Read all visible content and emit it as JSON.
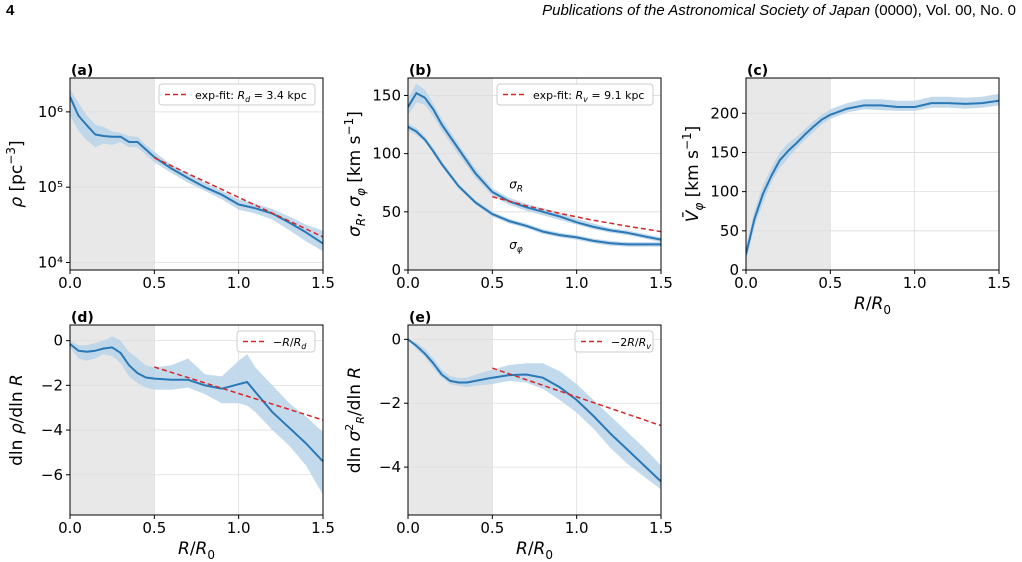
{
  "header": {
    "page_number": "4",
    "journal": "Publications of the Astronomical Society of Japan",
    "volume": " (0000), Vol. 00, No. 0"
  },
  "colors": {
    "line": "#2a78b5",
    "band": "#b9d4ea",
    "fit": "#d62728",
    "shade": "#e8e8e8"
  },
  "chart_data": [
    {
      "id": "a",
      "panel_label": "(a)",
      "type": "line",
      "ylabel": "ρ [pc⁻³]",
      "xlabel": "",
      "xlim": [
        0,
        1.5
      ],
      "ylim": [
        3.9,
        6.45
      ],
      "yscale": "log10",
      "yticks": [
        4,
        5,
        6
      ],
      "ytick_labels": [
        "10⁴",
        "10⁵",
        "10⁶"
      ],
      "xticks": [
        0,
        0.5,
        1,
        1.5
      ],
      "xtick_labels": [
        "0.0",
        "0.5",
        "1.0",
        "1.5"
      ],
      "shaded_region": [
        0,
        0.5
      ],
      "grid": true,
      "legend_position": "upper right",
      "series": [
        {
          "kind": "band",
          "x": [
            0,
            0.05,
            0.1,
            0.15,
            0.2,
            0.25,
            0.3,
            0.35,
            0.4,
            0.45,
            0.5,
            0.6,
            0.7,
            0.8,
            0.9,
            1.0,
            1.1,
            1.2,
            1.3,
            1.4,
            1.5
          ],
          "low": [
            5.95,
            5.75,
            5.62,
            5.53,
            5.58,
            5.56,
            5.6,
            5.53,
            5.53,
            5.43,
            5.33,
            5.19,
            5.06,
            4.95,
            4.84,
            4.7,
            4.65,
            4.57,
            4.43,
            4.28,
            4.15
          ],
          "high": [
            6.3,
            6.12,
            5.95,
            5.83,
            5.8,
            5.74,
            5.72,
            5.68,
            5.67,
            5.56,
            5.47,
            5.3,
            5.18,
            5.06,
            4.95,
            4.84,
            4.78,
            4.71,
            4.61,
            4.5,
            4.42
          ]
        },
        {
          "kind": "line",
          "x": [
            0,
            0.05,
            0.1,
            0.15,
            0.2,
            0.25,
            0.3,
            0.35,
            0.4,
            0.45,
            0.5,
            0.6,
            0.7,
            0.8,
            0.9,
            1.0,
            1.1,
            1.2,
            1.3,
            1.4,
            1.5
          ],
          "y": [
            6.2,
            5.95,
            5.82,
            5.7,
            5.68,
            5.67,
            5.67,
            5.6,
            5.6,
            5.5,
            5.4,
            5.25,
            5.12,
            5.0,
            4.9,
            4.77,
            4.72,
            4.65,
            4.53,
            4.4,
            4.25
          ]
        },
        {
          "kind": "fit",
          "name": "exp-fit: Rd = 3.4 kpc",
          "x": [
            0.5,
            1.5
          ],
          "y": [
            5.39,
            4.34
          ]
        }
      ],
      "legend": [
        {
          "prefix": "exp-fit: ",
          "symbol": "R",
          "sub": "d",
          "suffix": " = 3.4 kpc"
        }
      ]
    },
    {
      "id": "b",
      "panel_label": "(b)",
      "type": "line",
      "ylabel": "σR,  σφ [km s⁻¹]",
      "xlabel": "",
      "xlim": [
        0,
        1.5
      ],
      "ylim": [
        0,
        165
      ],
      "yticks": [
        0,
        50,
        100,
        150
      ],
      "ytick_labels": [
        "0",
        "50",
        "100",
        "150"
      ],
      "xticks": [
        0,
        0.5,
        1,
        1.5
      ],
      "xtick_labels": [
        "0.0",
        "0.5",
        "1.0",
        "1.5"
      ],
      "shaded_region": [
        0,
        0.5
      ],
      "grid": true,
      "legend_position": "upper right",
      "series": [
        {
          "kind": "band",
          "x": [
            0,
            0.05,
            0.1,
            0.15,
            0.2,
            0.3,
            0.4,
            0.5,
            0.6,
            0.7,
            0.8,
            0.9,
            1.0,
            1.1,
            1.2,
            1.3,
            1.4,
            1.5
          ],
          "low": [
            133,
            144,
            142,
            132,
            120,
            99,
            79,
            64,
            56,
            51,
            47,
            43,
            39,
            35,
            32,
            30,
            27,
            24
          ],
          "high": [
            147,
            160,
            155,
            143,
            130,
            108,
            87,
            70,
            62,
            57,
            53,
            49,
            44,
            40,
            36,
            34,
            31,
            28
          ]
        },
        {
          "kind": "line",
          "name": "σR",
          "x": [
            0,
            0.05,
            0.1,
            0.15,
            0.2,
            0.3,
            0.4,
            0.5,
            0.6,
            0.7,
            0.8,
            0.9,
            1.0,
            1.1,
            1.2,
            1.3,
            1.4,
            1.5
          ],
          "y": [
            140,
            152,
            148,
            138,
            125,
            104,
            83,
            67,
            59,
            54,
            50,
            46,
            41,
            37,
            34,
            32,
            29,
            26
          ]
        },
        {
          "kind": "band",
          "x": [
            0,
            0.05,
            0.1,
            0.15,
            0.2,
            0.3,
            0.4,
            0.5,
            0.6,
            0.7,
            0.8,
            0.9,
            1.0,
            1.1,
            1.2,
            1.3,
            1.4,
            1.5
          ],
          "low": [
            120,
            116,
            110,
            100,
            89,
            70,
            56,
            46,
            40,
            36,
            31,
            28,
            26,
            23,
            21,
            20,
            20,
            20
          ],
          "high": [
            126,
            122,
            115,
            105,
            94,
            74,
            60,
            50,
            44,
            40,
            35,
            32,
            30,
            27,
            25,
            24,
            24,
            24
          ]
        },
        {
          "kind": "line",
          "name": "σφ",
          "x": [
            0,
            0.05,
            0.1,
            0.15,
            0.2,
            0.3,
            0.4,
            0.5,
            0.6,
            0.7,
            0.8,
            0.9,
            1.0,
            1.1,
            1.2,
            1.3,
            1.4,
            1.5
          ],
          "y": [
            123,
            119,
            112,
            102,
            91,
            72,
            58,
            48,
            42,
            38,
            33,
            30,
            28,
            25,
            23,
            22,
            22,
            22
          ]
        },
        {
          "kind": "fit",
          "name": "exp-fit: Rv = 9.1 kpc",
          "x": [
            0.5,
            0.7,
            0.9,
            1.1,
            1.3,
            1.5
          ],
          "y": [
            63,
            55.3,
            48.6,
            42.7,
            37.6,
            33.0
          ]
        }
      ],
      "annotations": [
        {
          "symbol": "σ",
          "sub": "R",
          "x": 0.6,
          "y": 63
        },
        {
          "symbol": "σ",
          "sub": "φ",
          "x": 0.6,
          "y": 30
        }
      ],
      "legend": [
        {
          "prefix": "exp-fit: ",
          "symbol": "R",
          "sub": "v",
          "suffix": " = 9.1 kpc"
        }
      ]
    },
    {
      "id": "c",
      "panel_label": "(c)",
      "type": "line",
      "ylabel": "V̄φ [km s⁻¹]",
      "xlabel": "R/R0",
      "xlim": [
        0,
        1.5
      ],
      "ylim": [
        0,
        245
      ],
      "yticks": [
        0,
        50,
        100,
        150,
        200
      ],
      "ytick_labels": [
        "0",
        "50",
        "100",
        "150",
        "200"
      ],
      "xticks": [
        0,
        0.5,
        1,
        1.5
      ],
      "xtick_labels": [
        "0.0",
        "0.5",
        "1.0",
        "1.5"
      ],
      "shaded_region": [
        0,
        0.5
      ],
      "grid": true,
      "series": [
        {
          "kind": "band",
          "x": [
            0,
            0.05,
            0.1,
            0.15,
            0.2,
            0.25,
            0.3,
            0.35,
            0.4,
            0.45,
            0.5,
            0.6,
            0.7,
            0.8,
            0.9,
            1.0,
            1.1,
            1.2,
            1.3,
            1.4,
            1.5
          ],
          "low": [
            12,
            55,
            85,
            112,
            130,
            143,
            155,
            166,
            176,
            186,
            193,
            201,
            205,
            204,
            203,
            203,
            207,
            207,
            206,
            207,
            210
          ],
          "high": [
            30,
            75,
            108,
            130,
            150,
            162,
            170,
            180,
            190,
            198,
            205,
            213,
            218,
            218,
            216,
            216,
            221,
            221,
            220,
            221,
            225
          ]
        },
        {
          "kind": "line",
          "x": [
            0,
            0.05,
            0.1,
            0.15,
            0.2,
            0.25,
            0.3,
            0.35,
            0.4,
            0.45,
            0.5,
            0.6,
            0.7,
            0.8,
            0.9,
            1.0,
            1.1,
            1.2,
            1.3,
            1.4,
            1.5
          ],
          "y": [
            20,
            65,
            97,
            120,
            140,
            152,
            162,
            173,
            183,
            192,
            198,
            206,
            210,
            210,
            208,
            208,
            213,
            213,
            212,
            213,
            216
          ]
        }
      ]
    },
    {
      "id": "d",
      "panel_label": "(d)",
      "type": "line",
      "ylabel": "dln ρ/dln R",
      "xlabel": "R/R0",
      "xlim": [
        0,
        1.5
      ],
      "ylim": [
        -7.8,
        0.7
      ],
      "yticks": [
        0,
        -2,
        -4,
        -6
      ],
      "ytick_labels": [
        "0",
        "−2",
        "−4",
        "−6"
      ],
      "xticks": [
        0,
        0.5,
        1,
        1.5
      ],
      "xtick_labels": [
        "0.0",
        "0.5",
        "1.0",
        "1.5"
      ],
      "shaded_region": [
        0,
        0.5
      ],
      "grid": true,
      "legend_position": "upper right",
      "series": [
        {
          "kind": "band",
          "x": [
            0,
            0.05,
            0.1,
            0.15,
            0.2,
            0.25,
            0.3,
            0.35,
            0.4,
            0.45,
            0.5,
            0.6,
            0.7,
            0.8,
            0.9,
            1.0,
            1.05,
            1.1,
            1.2,
            1.3,
            1.4,
            1.5
          ],
          "low": [
            -0.3,
            -0.8,
            -0.9,
            -0.8,
            -0.6,
            -0.7,
            -1.0,
            -1.6,
            -1.9,
            -2.1,
            -2.2,
            -2.2,
            -2.1,
            -2.4,
            -2.8,
            -2.8,
            -2.9,
            -3.2,
            -4.0,
            -4.7,
            -5.6,
            -6.9
          ],
          "high": [
            0.0,
            -0.2,
            -0.2,
            -0.1,
            0.0,
            0.2,
            0.0,
            -0.5,
            -0.8,
            -1.1,
            -1.2,
            -1.1,
            -0.8,
            -1.5,
            -1.6,
            -0.9,
            -0.6,
            -1.2,
            -2.0,
            -2.8,
            -3.4,
            -4.1
          ]
        },
        {
          "kind": "line",
          "x": [
            0,
            0.05,
            0.1,
            0.15,
            0.2,
            0.25,
            0.3,
            0.35,
            0.4,
            0.45,
            0.5,
            0.6,
            0.7,
            0.8,
            0.9,
            1.0,
            1.05,
            1.1,
            1.2,
            1.3,
            1.4,
            1.5
          ],
          "y": [
            -0.15,
            -0.45,
            -0.5,
            -0.45,
            -0.35,
            -0.3,
            -0.55,
            -1.1,
            -1.45,
            -1.65,
            -1.7,
            -1.75,
            -1.75,
            -2.0,
            -2.15,
            -1.95,
            -1.85,
            -2.3,
            -3.2,
            -3.9,
            -4.6,
            -5.4
          ]
        },
        {
          "kind": "fit",
          "name": "−R/Rd",
          "x": [
            0.5,
            1.5
          ],
          "y": [
            -1.18,
            -3.55
          ]
        }
      ],
      "legend": [
        {
          "prefix": "−",
          "symbol": "R",
          "sub": "",
          "suffix": "/",
          "symbol2": "R",
          "sub2": "d"
        }
      ]
    },
    {
      "id": "e",
      "panel_label": "(e)",
      "type": "line",
      "ylabel": "dln σR²/dln R",
      "xlabel": "R/R0",
      "xlim": [
        0,
        1.5
      ],
      "ylim": [
        -5.5,
        0.45
      ],
      "yticks": [
        0,
        -2,
        -4
      ],
      "ytick_labels": [
        "0",
        "−2",
        "−4"
      ],
      "xticks": [
        0,
        0.5,
        1,
        1.5
      ],
      "xtick_labels": [
        "0.0",
        "0.5",
        "1.0",
        "1.5"
      ],
      "shaded_region": [
        0,
        0.5
      ],
      "grid": true,
      "legend_position": "upper right",
      "series": [
        {
          "kind": "band",
          "x": [
            0,
            0.05,
            0.1,
            0.15,
            0.2,
            0.25,
            0.3,
            0.35,
            0.4,
            0.5,
            0.6,
            0.7,
            0.8,
            0.9,
            1.0,
            1.1,
            1.2,
            1.3,
            1.4,
            1.5
          ],
          "low": [
            0.0,
            -0.3,
            -0.55,
            -0.9,
            -1.2,
            -1.4,
            -1.45,
            -1.5,
            -1.45,
            -1.4,
            -1.3,
            -1.35,
            -1.55,
            -1.9,
            -2.3,
            -2.8,
            -3.4,
            -3.9,
            -4.3,
            -4.7
          ],
          "high": [
            0.0,
            -0.1,
            -0.3,
            -0.6,
            -0.95,
            -1.15,
            -1.2,
            -1.2,
            -1.1,
            -0.95,
            -0.8,
            -0.75,
            -0.75,
            -1.0,
            -1.4,
            -1.9,
            -2.4,
            -2.9,
            -3.4,
            -3.95
          ]
        },
        {
          "kind": "line",
          "x": [
            0,
            0.05,
            0.1,
            0.15,
            0.2,
            0.25,
            0.3,
            0.35,
            0.4,
            0.5,
            0.6,
            0.7,
            0.8,
            0.9,
            1.0,
            1.1,
            1.2,
            1.3,
            1.4,
            1.5
          ],
          "y": [
            0.0,
            -0.2,
            -0.45,
            -0.75,
            -1.1,
            -1.3,
            -1.35,
            -1.35,
            -1.3,
            -1.2,
            -1.12,
            -1.1,
            -1.2,
            -1.5,
            -1.9,
            -2.4,
            -2.95,
            -3.45,
            -3.95,
            -4.45
          ]
        },
        {
          "kind": "fit",
          "name": "−2R/Rv",
          "x": [
            0.5,
            1.5
          ],
          "y": [
            -0.9,
            -2.7
          ]
        }
      ],
      "legend": [
        {
          "prefix": "−2",
          "symbol": "R",
          "sub": "",
          "suffix": "/",
          "symbol2": "R",
          "sub2": "v"
        }
      ]
    }
  ]
}
